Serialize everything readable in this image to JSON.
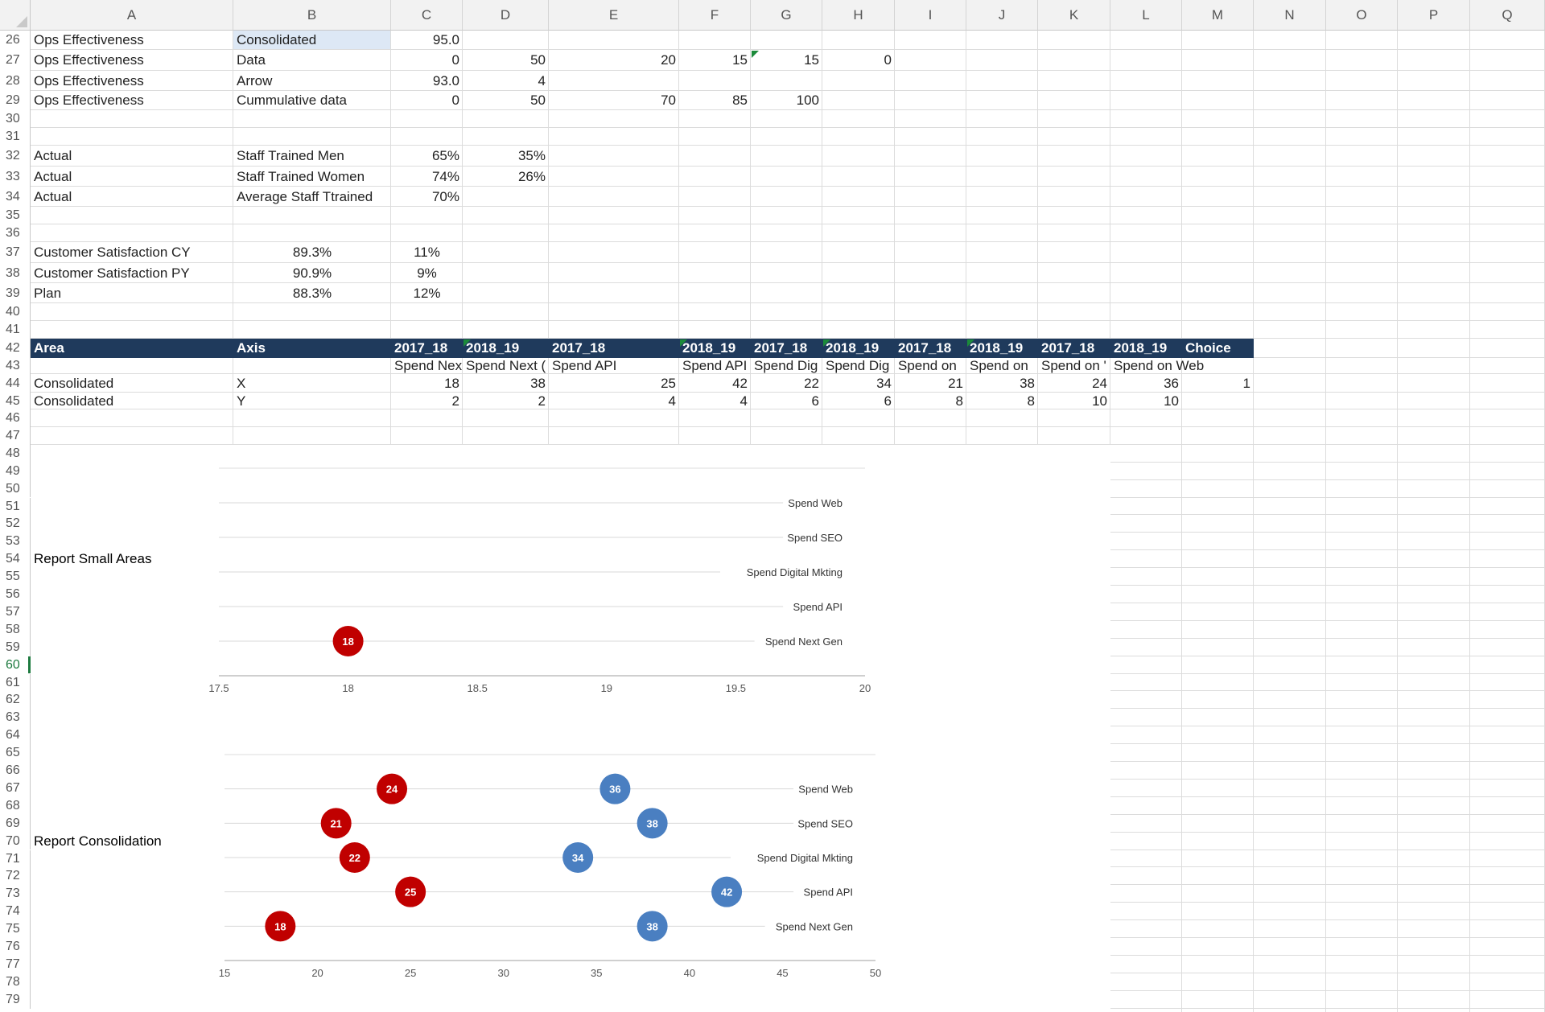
{
  "columns": [
    "A",
    "B",
    "C",
    "D",
    "E",
    "F",
    "G",
    "H",
    "I",
    "J",
    "K",
    "L",
    "M",
    "N",
    "O",
    "P",
    "Q"
  ],
  "rows": [
    "26",
    "27",
    "28",
    "29",
    "30",
    "31",
    "32",
    "33",
    "34",
    "35",
    "36",
    "37",
    "38",
    "39",
    "40",
    "41",
    "42",
    "43",
    "44",
    "45",
    "46",
    "47",
    "48",
    "49",
    "50",
    "51",
    "52",
    "53",
    "54",
    "55",
    "56",
    "57",
    "58",
    "59",
    "60",
    "61",
    "62",
    "63",
    "64",
    "65",
    "66",
    "67",
    "68",
    "69",
    "70",
    "71",
    "72",
    "73",
    "74",
    "75",
    "76",
    "77",
    "78",
    "79"
  ],
  "selected_row": "60",
  "cells": {
    "r26": {
      "A": "Ops Effectiveness",
      "B": "Consolidated",
      "C": "95.0"
    },
    "r27": {
      "A": "Ops Effectiveness",
      "B": "Data",
      "C": "0",
      "D": "50",
      "E": "20",
      "F": "15",
      "G": "15",
      "H": "0"
    },
    "r28": {
      "A": "Ops Effectiveness",
      "B": "Arrow",
      "C": "93.0",
      "D": "4"
    },
    "r29": {
      "A": "Ops Effectiveness",
      "B": "Cummulative data",
      "C": "0",
      "D": "50",
      "E": "70",
      "F": "85",
      "G": "100"
    },
    "r32": {
      "A": "Actual",
      "B": "Staff Trained Men",
      "C": "65%",
      "D": "35%"
    },
    "r33": {
      "A": "Actual",
      "B": "Staff Trained Women",
      "C": "74%",
      "D": "26%"
    },
    "r34": {
      "A": "Actual",
      "B": "Average Staff Ttrained",
      "C": "70%"
    },
    "r37": {
      "A": "Customer Satisfaction CY",
      "B": "89.3%",
      "C": "11%"
    },
    "r38": {
      "A": "Customer Satisfaction PY",
      "B": "90.9%",
      "C": "9%"
    },
    "r39": {
      "A": "Plan",
      "B": "88.3%",
      "C": "12%"
    },
    "r42": {
      "A": "Area",
      "B": "Axis",
      "C": "2017_18",
      "D": "2018_19",
      "E": "2017_18",
      "F": "2018_19",
      "G": "2017_18",
      "H": "2018_19",
      "I": "2017_18",
      "J": "2018_19",
      "K": "2017_18",
      "L": "2018_19",
      "M": "Choice"
    },
    "r43": {
      "C": "Spend Nex",
      "D": "Spend Next (",
      "E": "Spend API",
      "F": "Spend API",
      "G": "Spend Dig",
      "H": "Spend Dig",
      "I": "Spend on",
      "J": "Spend on",
      "K": "Spend on '",
      "L": "Spend on Web"
    },
    "r44": {
      "A": "Consolidated",
      "B": "X",
      "C": "18",
      "D": "38",
      "E": "25",
      "F": "42",
      "G": "22",
      "H": "34",
      "I": "21",
      "J": "38",
      "K": "24",
      "L": "36",
      "M": "1"
    },
    "r45": {
      "A": "Consolidated",
      "B": "Y",
      "C": "2",
      "D": "2",
      "E": "4",
      "F": "4",
      "G": "6",
      "H": "6",
      "I": "8",
      "J": "8",
      "K": "10",
      "L": "10"
    },
    "r54": {
      "A": "Report Small Areas"
    },
    "r70": {
      "A": "Report Consolidation"
    }
  },
  "chart_data": [
    {
      "type": "scatter",
      "title": "",
      "x_ticks": [
        "17.5",
        "18",
        "18.5",
        "19",
        "19.5",
        "20"
      ],
      "xlim": [
        17.5,
        20
      ],
      "ylim": [
        0,
        12
      ],
      "y_categories": [
        {
          "label": "Spend Next Gen",
          "y": 2
        },
        {
          "label": "Spend API",
          "y": 4
        },
        {
          "label": "Spend Digital Mkting",
          "y": 6
        },
        {
          "label": "Spend SEO",
          "y": 8
        },
        {
          "label": "Spend Web",
          "y": 10
        }
      ],
      "series": [
        {
          "color": "#c00000",
          "points": [
            {
              "x": 18,
              "y": 2,
              "label": "18"
            }
          ]
        }
      ]
    },
    {
      "type": "scatter",
      "title": "",
      "x_ticks": [
        "15",
        "20",
        "25",
        "30",
        "35",
        "40",
        "45",
        "50"
      ],
      "xlim": [
        15,
        50
      ],
      "ylim": [
        0,
        12
      ],
      "y_categories": [
        {
          "label": "Spend Next Gen",
          "y": 2
        },
        {
          "label": "Spend API",
          "y": 4
        },
        {
          "label": "Spend Digital Mkting",
          "y": 6
        },
        {
          "label": "Spend SEO",
          "y": 8
        },
        {
          "label": "Spend Web",
          "y": 10
        }
      ],
      "series": [
        {
          "color": "#c00000",
          "points": [
            {
              "x": 18,
              "y": 2,
              "label": "18"
            },
            {
              "x": 25,
              "y": 4,
              "label": "25"
            },
            {
              "x": 22,
              "y": 6,
              "label": "22"
            },
            {
              "x": 21,
              "y": 8,
              "label": "21"
            },
            {
              "x": 24,
              "y": 10,
              "label": "24"
            }
          ]
        },
        {
          "color": "#4a7fc1",
          "points": [
            {
              "x": 38,
              "y": 2,
              "label": "38"
            },
            {
              "x": 42,
              "y": 4,
              "label": "42"
            },
            {
              "x": 34,
              "y": 6,
              "label": "34"
            },
            {
              "x": 38,
              "y": 8,
              "label": "38"
            },
            {
              "x": 36,
              "y": 10,
              "label": "36"
            }
          ]
        }
      ]
    }
  ]
}
